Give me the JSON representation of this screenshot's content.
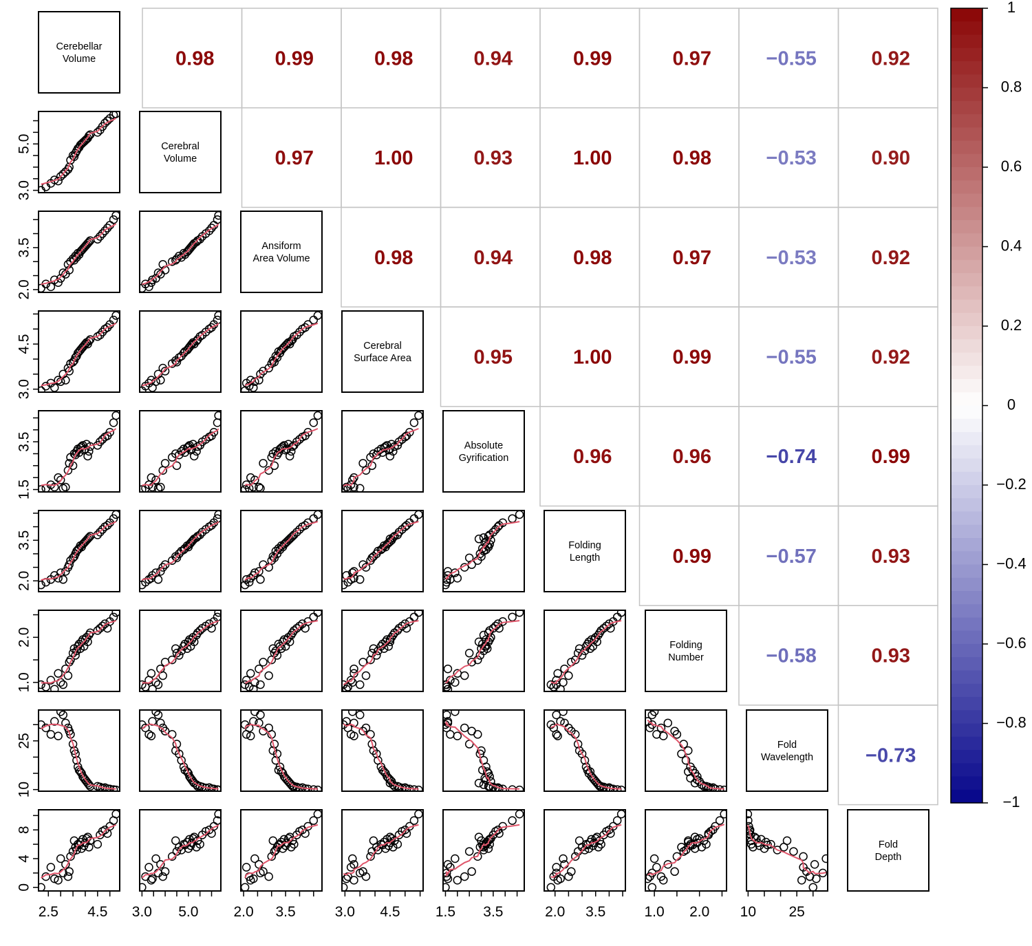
{
  "chart_data": {
    "type": "scatter-matrix",
    "variables": [
      [
        "Cerebellar",
        "Volume"
      ],
      [
        "Cerebral",
        "Volume"
      ],
      [
        "Ansiform",
        "Area Volume"
      ],
      [
        "Cerebral",
        "Surface Area"
      ],
      [
        "Absolute",
        "Gyrification"
      ],
      [
        "Folding",
        "Length"
      ],
      [
        "Folding",
        "Number"
      ],
      [
        "Fold",
        "Wavelength"
      ],
      [
        "Fold",
        "Depth"
      ]
    ],
    "correlations": [
      [
        null,
        0.98,
        0.99,
        0.98,
        0.94,
        0.99,
        0.97,
        -0.55,
        0.92
      ],
      [
        null,
        null,
        0.97,
        1.0,
        0.93,
        1.0,
        0.98,
        -0.53,
        0.9
      ],
      [
        null,
        null,
        null,
        0.98,
        0.94,
        0.98,
        0.97,
        -0.53,
        0.92
      ],
      [
        null,
        null,
        null,
        null,
        0.95,
        1.0,
        0.99,
        -0.55,
        0.92
      ],
      [
        null,
        null,
        null,
        null,
        null,
        0.96,
        0.96,
        -0.74,
        0.99
      ],
      [
        null,
        null,
        null,
        null,
        null,
        null,
        0.99,
        -0.57,
        0.93
      ],
      [
        null,
        null,
        null,
        null,
        null,
        null,
        null,
        -0.58,
        0.93
      ],
      [
        null,
        null,
        null,
        null,
        null,
        null,
        null,
        null,
        -0.73
      ]
    ],
    "correlation_labels": [
      [
        null,
        "0.98",
        "0.99",
        "0.98",
        "0.94",
        "0.99",
        "0.97",
        "−0.55",
        "0.92"
      ],
      [
        null,
        null,
        "0.97",
        "1.00",
        "0.93",
        "1.00",
        "0.98",
        "−0.53",
        "0.90"
      ],
      [
        null,
        null,
        null,
        "0.98",
        "0.94",
        "0.98",
        "0.97",
        "−0.53",
        "0.92"
      ],
      [
        null,
        null,
        null,
        null,
        "0.95",
        "1.00",
        "0.99",
        "−0.55",
        "0.92"
      ],
      [
        null,
        null,
        null,
        null,
        null,
        "0.96",
        "0.96",
        "−0.74",
        "0.99"
      ],
      [
        null,
        null,
        null,
        null,
        null,
        null,
        "0.99",
        "−0.57",
        "0.93"
      ],
      [
        null,
        null,
        null,
        null,
        null,
        null,
        null,
        "−0.58",
        "0.93"
      ],
      [
        null,
        null,
        null,
        null,
        null,
        null,
        null,
        null,
        "−0.73"
      ]
    ],
    "axes": [
      {
        "range": [
          2.1,
          5.4
        ],
        "ticks": [
          2.5,
          3.0,
          3.5,
          4.0,
          4.5,
          5.0
        ],
        "labels": [
          "2.5",
          "",
          "",
          "",
          "4.5",
          ""
        ]
      },
      {
        "range": [
          2.9,
          6.4
        ],
        "ticks": [
          3.0,
          3.5,
          4.0,
          4.5,
          5.0,
          5.5,
          6.0
        ],
        "labels": [
          "3.0",
          "",
          "",
          "",
          "5.0",
          "",
          ""
        ]
      },
      {
        "range": [
          1.9,
          4.8
        ],
        "ticks": [
          2.0,
          2.5,
          3.0,
          3.5,
          4.0,
          4.5
        ],
        "labels": [
          "2.0",
          "",
          "",
          "3.5",
          "",
          ""
        ]
      },
      {
        "range": [
          2.9,
          5.6
        ],
        "ticks": [
          3.0,
          3.5,
          4.0,
          4.5,
          5.0,
          5.5
        ],
        "labels": [
          "3.0",
          "",
          "",
          "4.5",
          "",
          ""
        ]
      },
      {
        "range": [
          1.4,
          4.8
        ],
        "ticks": [
          1.5,
          2.0,
          2.5,
          3.0,
          3.5,
          4.0,
          4.5
        ],
        "labels": [
          "1.5",
          "",
          "",
          "",
          "3.5",
          "",
          ""
        ]
      },
      {
        "range": [
          1.6,
          4.6
        ],
        "ticks": [
          2.0,
          2.5,
          3.0,
          3.5,
          4.0,
          4.5
        ],
        "labels": [
          "2.0",
          "",
          "",
          "3.5",
          "",
          ""
        ]
      },
      {
        "range": [
          0.8,
          2.6
        ],
        "ticks": [
          1.0,
          1.5,
          2.0,
          2.5
        ],
        "labels": [
          "1.0",
          "",
          "2.0",
          ""
        ]
      },
      {
        "range": [
          9.5,
          34.5
        ],
        "ticks": [
          10,
          15,
          20,
          25,
          30
        ],
        "labels": [
          "10",
          "",
          "",
          "25",
          ""
        ]
      },
      {
        "range": [
          -0.5,
          10.8
        ],
        "ticks": [
          0,
          2,
          4,
          6,
          8,
          10
        ],
        "labels": [
          "0",
          "",
          "4",
          "",
          "8",
          ""
        ]
      }
    ],
    "left_axis_labels": [
      [
        "3.0",
        "5.0"
      ],
      [
        "2.0",
        "3.5"
      ],
      [
        "3.0",
        "4.5"
      ],
      [
        "1.5",
        "3.5"
      ],
      [
        "2.0",
        "3.5"
      ],
      [
        "1.0",
        "2.0"
      ],
      [
        "10",
        "25"
      ],
      [
        "0",
        "4",
        "8"
      ]
    ],
    "bottom_axis_labels": [
      [
        "2.5",
        "4.5"
      ],
      [
        "3.0",
        "5.0"
      ],
      [
        "2.0",
        "3.5"
      ],
      [
        "3.0",
        "4.5"
      ],
      [
        "1.5",
        "3.5"
      ],
      [
        "2.0",
        "3.5"
      ],
      [
        "1.0",
        "2.0"
      ],
      [
        "10",
        "25"
      ]
    ],
    "colorbar": {
      "range": [
        -1,
        1
      ],
      "labels": [
        "1",
        "0.8",
        "0.6",
        "0.4",
        "0.2",
        "0",
        "−0.2",
        "−0.4",
        "−0.6",
        "−0.8",
        "−1"
      ],
      "low_color": "#05058a",
      "mid_color": "#ffffff",
      "high_color": "#8a0505"
    },
    "fit_color": "#e0556a",
    "points": [
      [
        2.2,
        3.0,
        2.05,
        2.95,
        1.5,
        1.85,
        0.95,
        30,
        0
      ],
      [
        2.4,
        3.15,
        2.2,
        3.1,
        1.55,
        1.95,
        0.9,
        29,
        1.5
      ],
      [
        2.6,
        3.3,
        2.1,
        3.2,
        1.7,
        2.05,
        1.05,
        27,
        2.8
      ],
      [
        2.75,
        3.45,
        2.35,
        3.05,
        1.6,
        2.2,
        0.85,
        31,
        1.2
      ],
      [
        2.9,
        3.4,
        2.25,
        3.3,
        2.0,
        2.1,
        1.2,
        26.5,
        1.0
      ],
      [
        3.0,
        3.6,
        2.4,
        3.25,
        1.9,
        2.3,
        1.0,
        34,
        4.0
      ],
      [
        3.1,
        3.7,
        2.6,
        3.5,
        1.55,
        2.05,
        0.95,
        33,
        2.0
      ],
      [
        3.2,
        3.8,
        2.55,
        3.3,
        1.6,
        2.35,
        1.3,
        30.5,
        3.2
      ],
      [
        3.3,
        3.9,
        2.9,
        3.7,
        2.3,
        2.5,
        1.15,
        29,
        1.5
      ],
      [
        3.35,
        4.0,
        2.7,
        3.6,
        2.6,
        2.6,
        1.45,
        28,
        2.2
      ],
      [
        3.4,
        4.3,
        3.0,
        3.85,
        2.85,
        2.75,
        1.5,
        27,
        4.3
      ],
      [
        3.5,
        4.5,
        3.1,
        3.9,
        2.5,
        2.85,
        1.65,
        24,
        5.0
      ],
      [
        3.55,
        4.45,
        3.05,
        3.95,
        3.0,
        2.9,
        1.75,
        22,
        6.5
      ],
      [
        3.6,
        4.6,
        3.2,
        4.05,
        2.95,
        3.0,
        1.6,
        21,
        5.6
      ],
      [
        3.65,
        4.7,
        3.15,
        4.1,
        3.1,
        3.1,
        1.7,
        19,
        5.2
      ],
      [
        3.7,
        4.8,
        3.3,
        4.2,
        3.2,
        3.15,
        1.8,
        17,
        6.0
      ],
      [
        3.75,
        4.85,
        3.25,
        4.25,
        3.05,
        3.2,
        1.85,
        16,
        5.9
      ],
      [
        3.8,
        4.95,
        3.35,
        4.3,
        3.25,
        3.3,
        1.75,
        15.5,
        6.3
      ],
      [
        3.85,
        5.0,
        3.4,
        4.35,
        3.3,
        3.25,
        1.9,
        15,
        5.4
      ],
      [
        3.9,
        5.05,
        3.45,
        4.4,
        3.35,
        3.35,
        1.95,
        14,
        6.7
      ],
      [
        3.95,
        5.1,
        3.5,
        4.45,
        3.15,
        3.4,
        1.8,
        13.5,
        5.8
      ],
      [
        4.0,
        5.15,
        3.55,
        4.5,
        3.2,
        3.45,
        1.95,
        13,
        6.2
      ],
      [
        4.05,
        5.2,
        3.6,
        4.55,
        3.4,
        3.5,
        2.0,
        12.5,
        6.8
      ],
      [
        4.1,
        5.25,
        3.65,
        4.5,
        2.9,
        3.55,
        1.9,
        12,
        7.0
      ],
      [
        4.15,
        5.35,
        3.7,
        4.6,
        3.1,
        3.6,
        2.05,
        11.5,
        5.6
      ],
      [
        4.2,
        5.4,
        3.75,
        4.65,
        3.3,
        3.65,
        2.1,
        11,
        6.5
      ],
      [
        4.5,
        5.5,
        3.8,
        4.75,
        3.35,
        3.7,
        2.15,
        11,
        6.0
      ],
      [
        4.6,
        5.6,
        3.9,
        4.8,
        3.5,
        3.8,
        2.2,
        10.8,
        7.3
      ],
      [
        4.7,
        5.75,
        4.0,
        4.9,
        3.6,
        3.9,
        2.25,
        10.5,
        7.8
      ],
      [
        4.8,
        5.9,
        4.1,
        5.0,
        3.7,
        4.0,
        2.3,
        10.6,
        8.0
      ],
      [
        4.9,
        6.0,
        4.2,
        5.05,
        3.75,
        4.05,
        2.2,
        10.3,
        7.5
      ],
      [
        5.0,
        6.1,
        4.3,
        5.15,
        3.9,
        4.15,
        2.35,
        10.2,
        8.5
      ],
      [
        5.15,
        6.25,
        4.5,
        5.3,
        4.3,
        4.3,
        2.45,
        10,
        9.3
      ],
      [
        5.25,
        6.3,
        4.65,
        5.45,
        4.6,
        4.45,
        2.55,
        9.9,
        10.2
      ]
    ]
  }
}
